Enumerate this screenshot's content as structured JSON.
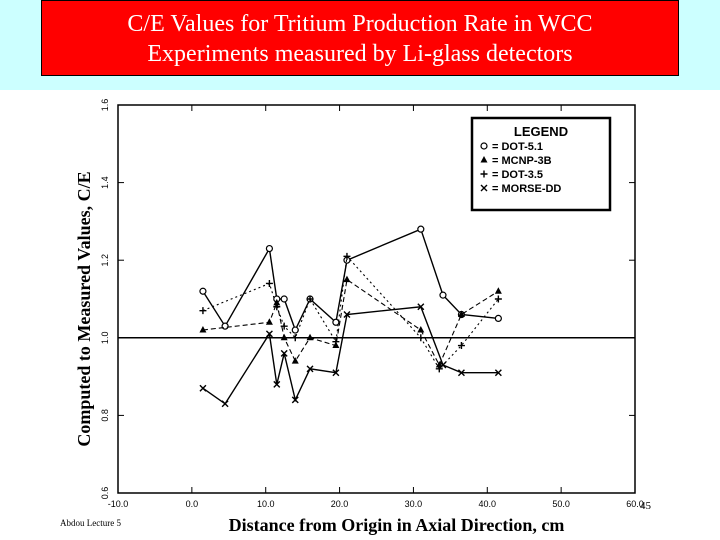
{
  "slide": {
    "title_line1": "C/E Values for Tritium Production Rate in WCC",
    "title_line2": "Experiments measured by Li-glass detectors",
    "footer_left": "Abdou Lecture 5",
    "page_number": "45"
  },
  "colors": {
    "title_bg": "#ff0000",
    "band_bg": "#ccffff",
    "ink": "#000000"
  },
  "chart_data": {
    "type": "line",
    "xlabel": "Distance from Origin in Axial Direction, cm",
    "ylabel": "Computed to Measured Values, C/E",
    "xlim": [
      -10,
      60
    ],
    "ylim": [
      0.6,
      1.6
    ],
    "xticks": [
      -10,
      0,
      10,
      20,
      30,
      40,
      50,
      60
    ],
    "xtick_labels": [
      "-10.0",
      "0.0",
      "10.0",
      "20.0",
      "30.0",
      "40.0",
      "50.0",
      "60.0"
    ],
    "yticks": [
      0.6,
      0.8,
      1.0,
      1.2,
      1.4,
      1.6
    ],
    "ytick_labels": [
      "0.6",
      "0.8",
      "1.0",
      "1.2",
      "1.4",
      "1.6"
    ],
    "reference_line": 1.0,
    "legend": {
      "title": "LEGEND",
      "position": "top-right",
      "entries": [
        {
          "marker": "o",
          "label": "= DOT-5.1"
        },
        {
          "marker": "▲",
          "label": "= MCNP-3B"
        },
        {
          "marker": "+",
          "label": "= DOT-3.5"
        },
        {
          "marker": "×",
          "label": "= MORSE-DD"
        }
      ]
    },
    "series": [
      {
        "name": "DOT-5.1",
        "marker": "circle",
        "dash": "solid",
        "x": [
          1.5,
          4.5,
          10.5,
          11.5,
          12.5,
          14.0,
          16.0,
          19.5,
          21.0,
          31.0,
          34.0,
          36.5,
          41.5
        ],
        "y": [
          1.12,
          1.03,
          1.23,
          1.1,
          1.1,
          1.02,
          1.1,
          1.04,
          1.2,
          1.28,
          1.11,
          1.06,
          1.05
        ]
      },
      {
        "name": "MCNP-3B",
        "marker": "triangle",
        "dash": "dashed",
        "x": [
          1.5,
          10.5,
          11.5,
          12.5,
          14.0,
          16.0,
          19.5,
          21.0,
          31.0,
          33.5,
          36.5,
          41.5
        ],
        "y": [
          1.02,
          1.04,
          1.09,
          1.0,
          0.94,
          1.0,
          0.98,
          1.15,
          1.02,
          0.93,
          1.06,
          1.12
        ]
      },
      {
        "name": "DOT-3.5",
        "marker": "plus",
        "dash": "dotted",
        "x": [
          1.5,
          10.5,
          11.5,
          12.5,
          14.0,
          16.0,
          19.5,
          21.0,
          31.0,
          33.5,
          36.5,
          41.5
        ],
        "y": [
          1.07,
          1.14,
          1.08,
          1.03,
          1.0,
          1.1,
          0.99,
          1.21,
          1.0,
          0.92,
          0.98,
          1.1
        ]
      },
      {
        "name": "MORSE-DD",
        "marker": "x",
        "dash": "solid",
        "x": [
          1.5,
          4.5,
          10.5,
          11.5,
          12.5,
          14.0,
          16.0,
          19.5,
          21.0,
          31.0,
          34.0,
          36.5,
          41.5
        ],
        "y": [
          0.87,
          0.83,
          1.01,
          0.88,
          0.96,
          0.84,
          0.92,
          0.91,
          1.06,
          1.08,
          0.93,
          0.91,
          0.91
        ]
      }
    ]
  }
}
